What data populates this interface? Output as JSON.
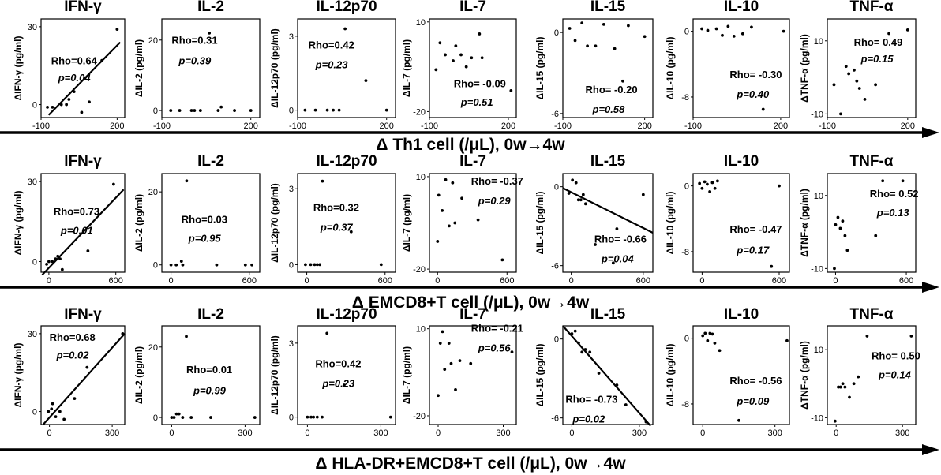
{
  "chart_data": [
    {
      "type": "scatter",
      "row_label": "Δ Th1 cell (/μL), 0w→4w",
      "xticks": [
        -100,
        200
      ],
      "panels": [
        {
          "title": "IFN-γ",
          "ylabel": "ΔIFN-γ (pg/ml)",
          "xlim": [
            -100,
            230
          ],
          "ylim": [
            -5,
            33
          ],
          "yticks": [
            30,
            0
          ],
          "rho": "Rho=0.64",
          "p": "p=0.04",
          "x": [
            -75,
            -55,
            -20,
            0,
            10,
            30,
            60,
            90,
            140,
            200
          ],
          "y": [
            -1,
            -1,
            0,
            0,
            2,
            5,
            -3,
            1,
            17,
            29
          ],
          "fit": [
            [
              -70,
              -4
            ],
            [
              212,
              24
            ]
          ],
          "ann": [
            0.12,
            0.46,
            0.63
          ]
        },
        {
          "title": "IL-2",
          "ylabel": "ΔIL-2 (pg/ml)",
          "xlim": [
            -100,
            230
          ],
          "ylim": [
            -2,
            26
          ],
          "yticks": [
            20,
            0
          ],
          "rho": "Rho=0.31",
          "p": "p=0.39",
          "x": [
            -70,
            -40,
            0,
            10,
            30,
            60,
            90,
            100,
            145,
            200
          ],
          "y": [
            0,
            0,
            0,
            0,
            0,
            22,
            0,
            1,
            0,
            0
          ],
          "ann": [
            0.1,
            0.25,
            0.46
          ]
        },
        {
          "title": "IL-12p70",
          "ylabel": "ΔIL-12p70 (pg/ml)",
          "xlim": [
            -100,
            230
          ],
          "ylim": [
            -0.3,
            3.7
          ],
          "yticks": [
            3,
            0
          ],
          "rho": "Rho=0.42",
          "p": "p=0.23",
          "x": [
            -75,
            -40,
            0,
            20,
            40,
            60,
            130,
            200
          ],
          "y": [
            0,
            0,
            0,
            0,
            0,
            3.3,
            1.2,
            0
          ],
          "ann": [
            0.11,
            0.3,
            0.5
          ]
        },
        {
          "title": "IL-7",
          "ylabel": "ΔIL-7 (pg/ml)",
          "xlim": [
            -100,
            230
          ],
          "ylim": [
            -22,
            11
          ],
          "yticks": [
            10,
            -20
          ],
          "rho": "Rho= -0.09",
          "p": "p=0.51",
          "x": [
            -75,
            -60,
            -40,
            -10,
            0,
            20,
            40,
            60,
            90,
            100,
            210
          ],
          "y": [
            -6,
            3,
            -1,
            -3,
            2,
            -1,
            -5,
            -2,
            6,
            -2,
            -13
          ],
          "ann": [
            0.28,
            0.69,
            0.88
          ]
        },
        {
          "title": "IL-15",
          "ylabel": "ΔIL-15 (pg/ml)",
          "xlim": [
            -100,
            230
          ],
          "ylim": [
            -6.3,
            1
          ],
          "yticks": [
            0,
            -6
          ],
          "rho": "Rho= -0.20",
          "p": "p=0.58",
          "x": [
            -75,
            -55,
            -30,
            -10,
            20,
            50,
            90,
            120,
            140,
            200
          ],
          "y": [
            0.3,
            -0.6,
            0.7,
            -1,
            -1,
            0.6,
            -1.2,
            -3.6,
            0.5,
            -0.3
          ],
          "ann": [
            0.25,
            0.75,
            0.95
          ]
        },
        {
          "title": "IL-10",
          "ylabel": "ΔIL-10 (pg/ml)",
          "xlim": [
            -100,
            230
          ],
          "ylim": [
            -10.5,
            1.5
          ],
          "yticks": [
            0,
            -8
          ],
          "rho": "Rho= -0.30",
          "p": "p=0.40",
          "x": [
            -70,
            -50,
            -20,
            0,
            20,
            40,
            70,
            100,
            140,
            210
          ],
          "y": [
            0.3,
            0.1,
            0.3,
            -0.5,
            0.6,
            -0.6,
            -0.3,
            0.5,
            -9.5,
            0
          ],
          "ann": [
            0.38,
            0.6,
            0.8
          ]
        },
        {
          "title": "TNF-α",
          "ylabel": "ΔTNF-α (pg/ml)",
          "xlim": [
            -100,
            230
          ],
          "ylim": [
            -11,
            16
          ],
          "yticks": [
            10,
            -10
          ],
          "rho": "Rho= 0.49",
          "p": "p=0.15",
          "x": [
            -75,
            -50,
            -30,
            -20,
            0,
            10,
            20,
            40,
            80,
            130,
            200
          ],
          "y": [
            -2,
            -10,
            3,
            1,
            2,
            -1,
            -3,
            -6,
            -2,
            12,
            13
          ],
          "ann": [
            0.3,
            0.27,
            0.44
          ]
        }
      ]
    },
    {
      "type": "scatter",
      "row_label": "Δ EMCD8+T cell (/μL), 0w→4w",
      "xticks": [
        0,
        600
      ],
      "panels": [
        {
          "title": "IFN-γ",
          "ylabel": "ΔIFN-γ (pg/ml)",
          "xlim": [
            -70,
            680
          ],
          "ylim": [
            -4,
            33
          ],
          "yticks": [
            30,
            0
          ],
          "rho": "Rho=0.73",
          "p": "p=0.01",
          "x": [
            -20,
            0,
            30,
            60,
            80,
            100,
            120,
            350,
            580
          ],
          "y": [
            -1,
            0,
            0,
            1,
            2,
            1,
            -3,
            4,
            29
          ],
          "fit": [
            [
              -60,
              -5
            ],
            [
              670,
              27
            ]
          ],
          "ann": [
            0.15,
            0.42,
            0.61
          ]
        },
        {
          "title": "IL-2",
          "ylabel": "ΔIL-2 (pg/ml)",
          "xlim": [
            -70,
            680
          ],
          "ylim": [
            -2,
            25
          ],
          "yticks": [
            20,
            0
          ],
          "rho": "Rho=0.03",
          "p": "p=0.95",
          "x": [
            0,
            40,
            80,
            90,
            120,
            350,
            570,
            620
          ],
          "y": [
            0,
            0,
            1,
            0,
            23,
            0,
            0,
            0
          ],
          "ann": [
            0.2,
            0.5,
            0.69
          ]
        },
        {
          "title": "IL-12p70",
          "ylabel": "ΔIL-12p70 (pg/ml)",
          "xlim": [
            -70,
            680
          ],
          "ylim": [
            -0.3,
            3.6
          ],
          "yticks": [
            3,
            0
          ],
          "rho": "Rho=0.32",
          "p": "p=0.37",
          "x": [
            -10,
            30,
            60,
            80,
            100,
            120,
            340,
            570
          ],
          "y": [
            0,
            0,
            0,
            0,
            0,
            3.3,
            1.3,
            0
          ],
          "ann": [
            0.16,
            0.38,
            0.58
          ]
        },
        {
          "title": "IL-7",
          "ylabel": "ΔIL-7 (pg/ml)",
          "xlim": [
            -70,
            680
          ],
          "ylim": [
            -21,
            11
          ],
          "yticks": [
            10,
            -20
          ],
          "rho": "Rho= -0.37",
          "p": "p=0.29",
          "x": [
            0,
            10,
            40,
            70,
            100,
            130,
            150,
            210,
            350,
            560
          ],
          "y": [
            -11,
            4,
            -1,
            9,
            -6,
            8,
            -5,
            3,
            -4,
            -17
          ],
          "ann": [
            0.48,
            0.11,
            0.31
          ]
        },
        {
          "title": "IL-15",
          "ylabel": "ΔIL-15 (pg/ml)",
          "xlim": [
            -70,
            680
          ],
          "ylim": [
            -6.5,
            1
          ],
          "yticks": [
            0,
            -6
          ],
          "rho": "Rho= -0.66",
          "p": "p=0.04",
          "x": [
            -20,
            10,
            40,
            60,
            80,
            100,
            120,
            200,
            350,
            380,
            600
          ],
          "y": [
            -0.5,
            0.5,
            0.3,
            -1,
            -1,
            -0.6,
            -1.3,
            -4.4,
            -5.8,
            -3.2,
            -0.6
          ],
          "fit": [
            [
              -70,
              -0.1
            ],
            [
              680,
              -3.5
            ]
          ],
          "ann": [
            0.35,
            0.7,
            0.9
          ]
        },
        {
          "title": "IL-10",
          "ylabel": "ΔIL-10 (pg/ml)",
          "xlim": [
            -70,
            680
          ],
          "ylim": [
            -10.5,
            1.5
          ],
          "yticks": [
            0,
            -8
          ],
          "rho": "Rho= -0.47",
          "p": "p=0.17",
          "x": [
            -20,
            0,
            20,
            40,
            60,
            80,
            100,
            120,
            540,
            600
          ],
          "y": [
            0.3,
            -0.3,
            0.5,
            0.2,
            -0.7,
            0.4,
            -0.3,
            0.6,
            -9.8,
            0
          ],
          "ann": [
            0.38,
            0.6,
            0.81
          ]
        },
        {
          "title": "TNF-α",
          "ylabel": "ΔTNF-α (pg/ml)",
          "xlim": [
            -70,
            680
          ],
          "ylim": [
            -11,
            16
          ],
          "yticks": [
            10,
            -10
          ],
          "rho": "Rho= 0.52",
          "p": "p=0.13",
          "x": [
            -10,
            0,
            20,
            40,
            60,
            80,
            100,
            340,
            400,
            570
          ],
          "y": [
            -10,
            2,
            4,
            1,
            3,
            -1,
            -5,
            -1,
            14,
            14
          ],
          "ann": [
            0.48,
            0.24,
            0.43
          ]
        }
      ]
    },
    {
      "type": "scatter",
      "row_label": "Δ HLA-DR+EMCD8+T cell (/μL), 0w→4w",
      "xticks": [
        0,
        300
      ],
      "panels": [
        {
          "title": "IFN-γ",
          "ylabel": "ΔIFN-γ (pg/ml)",
          "xlim": [
            -40,
            360
          ],
          "ylim": [
            -5,
            33
          ],
          "yticks": [
            30,
            0
          ],
          "rho": "Rho=0.68",
          "p": "p=0.02",
          "x": [
            -5,
            10,
            15,
            30,
            50,
            70,
            120,
            180,
            350
          ],
          "y": [
            0,
            1,
            3,
            -2,
            0,
            -3,
            5,
            17,
            30
          ],
          "fit": [
            [
              -30,
              -5
            ],
            [
              360,
              30
            ]
          ],
          "ann": [
            0.1,
            0.15,
            0.33
          ]
        },
        {
          "title": "IL-2",
          "ylabel": "ΔIL-2 (pg/ml)",
          "xlim": [
            -40,
            360
          ],
          "ylim": [
            -2,
            26
          ],
          "yticks": [
            20,
            0
          ],
          "rho": "Rho=0.01",
          "p": "p=0.99",
          "x": [
            0,
            10,
            20,
            30,
            45,
            60,
            80,
            160,
            340
          ],
          "y": [
            0,
            0,
            1,
            1,
            0,
            23,
            0,
            0,
            0
          ],
          "ann": [
            0.25,
            0.48,
            0.69
          ]
        },
        {
          "title": "IL-12p70",
          "ylabel": "ΔIL-12p70 (pg/ml)",
          "xlim": [
            -40,
            360
          ],
          "ylim": [
            -0.3,
            3.7
          ],
          "yticks": [
            3,
            0
          ],
          "rho": "Rho=0.42",
          "p": "p=0.23",
          "x": [
            0,
            15,
            25,
            40,
            60,
            80,
            150,
            340
          ],
          "y": [
            0,
            0,
            0,
            0,
            0,
            3.4,
            1.3,
            0
          ],
          "ann": [
            0.18,
            0.42,
            0.62
          ]
        },
        {
          "title": "IL-7",
          "ylabel": "ΔIL-7 (pg/ml)",
          "xlim": [
            -40,
            360
          ],
          "ylim": [
            -23,
            11
          ],
          "yticks": [
            10,
            -20
          ],
          "rho": "Rho= -0.21",
          "p": "p=0.56",
          "x": [
            0,
            10,
            20,
            30,
            50,
            60,
            80,
            100,
            150,
            340
          ],
          "y": [
            -13,
            5,
            9,
            -4,
            5,
            -2,
            -11,
            -1,
            -2,
            2
          ],
          "ann": [
            0.48,
            0.06,
            0.26
          ]
        },
        {
          "title": "IL-15",
          "ylabel": "ΔIL-15 (pg/ml)",
          "xlim": [
            -40,
            360
          ],
          "ylim": [
            -6.5,
            1
          ],
          "yticks": [
            0,
            -6
          ],
          "rho": "Rho= -0.73",
          "p": "p=0.02",
          "x": [
            0,
            15,
            30,
            45,
            60,
            80,
            120,
            200,
            240,
            330
          ],
          "y": [
            0.4,
            0.6,
            -0.3,
            -1,
            -0.8,
            -1,
            -2.6,
            -3.5,
            -5,
            -6.3
          ],
          "fit": [
            [
              -40,
              1
            ],
            [
              350,
              -6.6
            ]
          ],
          "ann": [
            0.03,
            0.78,
            0.98
          ]
        },
        {
          "title": "IL-10",
          "ylabel": "ΔIL-10 (pg/ml)",
          "xlim": [
            -40,
            360
          ],
          "ylim": [
            -10.5,
            1.5
          ],
          "yticks": [
            0,
            -8
          ],
          "rho": "Rho= -0.56",
          "p": "p=0.09",
          "x": [
            0,
            10,
            20,
            30,
            40,
            50,
            70,
            150,
            350
          ],
          "y": [
            0.3,
            0.6,
            -0.3,
            0.6,
            0.5,
            -0.6,
            -1.5,
            -10,
            -0.3
          ],
          "ann": [
            0.38,
            0.59,
            0.8
          ]
        },
        {
          "title": "TNF-α",
          "ylabel": "ΔTNF-α (pg/ml)",
          "xlim": [
            -40,
            360
          ],
          "ylim": [
            -12,
            17
          ],
          "yticks": [
            10,
            -10
          ],
          "rho": "Rho= 0.50",
          "p": "p=0.14",
          "x": [
            -5,
            10,
            20,
            30,
            40,
            60,
            80,
            100,
            140,
            340
          ],
          "y": [
            -11,
            -1,
            -1,
            0,
            -1,
            -4,
            0,
            2,
            14,
            14
          ],
          "ann": [
            0.5,
            0.34,
            0.53
          ]
        }
      ]
    }
  ]
}
